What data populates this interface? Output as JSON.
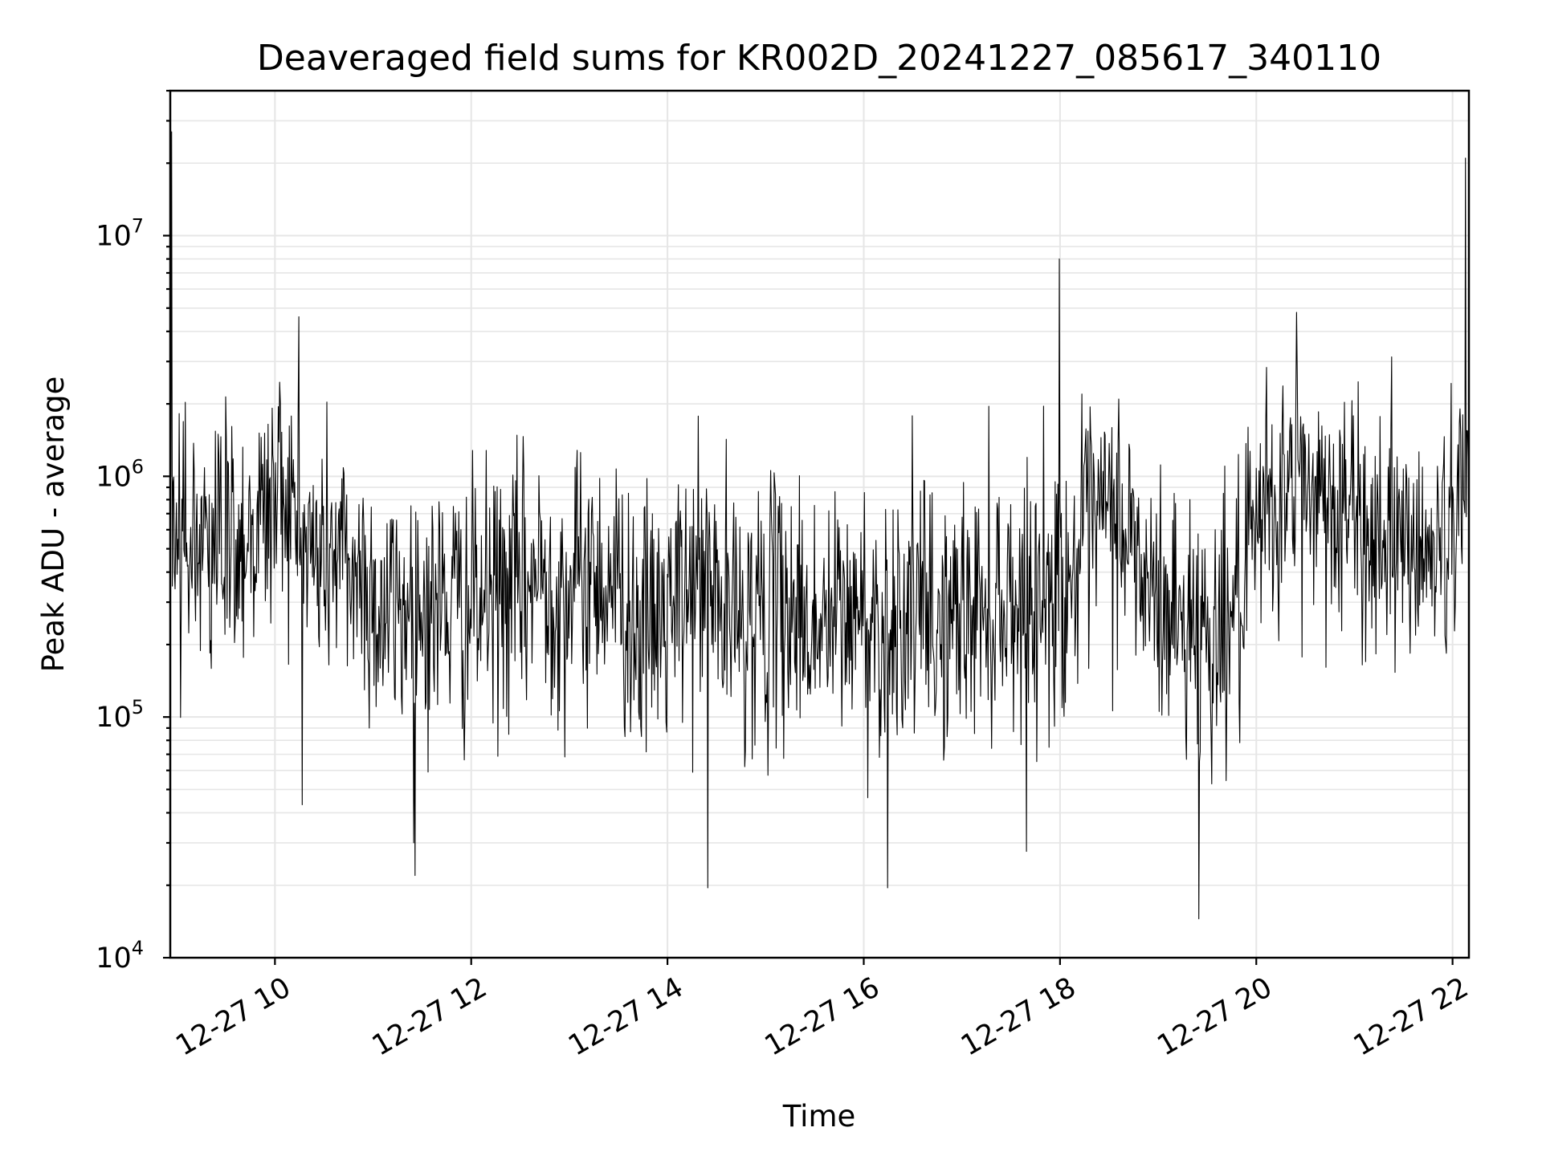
{
  "chart_data": {
    "type": "line",
    "title": "Deaveraged field sums for KR002D_20241227_085617_340110",
    "xlabel": "Time",
    "ylabel": "Peak ADU - average",
    "yscale": "log",
    "ylim": [
      10000,
      40000000
    ],
    "xlim": [
      "2024-12-27 08:56",
      "2024-12-27 22:10"
    ],
    "grid": true,
    "color": "#000000",
    "x_ticks": [
      {
        "value": "2024-12-27 10:00",
        "label": "12-27 10"
      },
      {
        "value": "2024-12-27 12:00",
        "label": "12-27 12"
      },
      {
        "value": "2024-12-27 14:00",
        "label": "12-27 14"
      },
      {
        "value": "2024-12-27 16:00",
        "label": "12-27 16"
      },
      {
        "value": "2024-12-27 18:00",
        "label": "12-27 18"
      },
      {
        "value": "2024-12-27 20:00",
        "label": "12-27 20"
      },
      {
        "value": "2024-12-27 22:00",
        "label": "12-27 22"
      }
    ],
    "y_ticks": [
      {
        "value": 10000,
        "base": "10",
        "exp": "4"
      },
      {
        "value": 100000,
        "base": "10",
        "exp": "5"
      },
      {
        "value": 1000000,
        "base": "10",
        "exp": "6"
      },
      {
        "value": 10000000,
        "base": "10",
        "exp": "7"
      }
    ],
    "series": [
      {
        "x": [
          "2024-12-27 08:56",
          "2024-12-27 09:05",
          "2024-12-27 09:15",
          "2024-12-27 09:25",
          "2024-12-27 09:35",
          "2024-12-27 09:45",
          "2024-12-27 09:55",
          "2024-12-27 10:05",
          "2024-12-27 10:15",
          "2024-12-27 10:25",
          "2024-12-27 10:35",
          "2024-12-27 10:45",
          "2024-12-27 10:55",
          "2024-12-27 11:05",
          "2024-12-27 11:15",
          "2024-12-27 11:25",
          "2024-12-27 11:35",
          "2024-12-27 11:45",
          "2024-12-27 11:55",
          "2024-12-27 12:05",
          "2024-12-27 12:15",
          "2024-12-27 12:25",
          "2024-12-27 12:35",
          "2024-12-27 12:45",
          "2024-12-27 12:55",
          "2024-12-27 13:05",
          "2024-12-27 13:15",
          "2024-12-27 13:25",
          "2024-12-27 13:35",
          "2024-12-27 13:45",
          "2024-12-27 13:55",
          "2024-12-27 14:05",
          "2024-12-27 14:15",
          "2024-12-27 14:25",
          "2024-12-27 14:35",
          "2024-12-27 14:45",
          "2024-12-27 14:55",
          "2024-12-27 15:05",
          "2024-12-27 15:15",
          "2024-12-27 15:25",
          "2024-12-27 15:35",
          "2024-12-27 15:45",
          "2024-12-27 15:55",
          "2024-12-27 16:05",
          "2024-12-27 16:15",
          "2024-12-27 16:25",
          "2024-12-27 16:35",
          "2024-12-27 16:45",
          "2024-12-27 16:55",
          "2024-12-27 17:05",
          "2024-12-27 17:15",
          "2024-12-27 17:25",
          "2024-12-27 17:35",
          "2024-12-27 17:45",
          "2024-12-27 17:55",
          "2024-12-27 18:05",
          "2024-12-27 18:15",
          "2024-12-27 18:25",
          "2024-12-27 18:35",
          "2024-12-27 18:45",
          "2024-12-27 18:55",
          "2024-12-27 19:05",
          "2024-12-27 19:15",
          "2024-12-27 19:25",
          "2024-12-27 19:35",
          "2024-12-27 19:45",
          "2024-12-27 19:55",
          "2024-12-27 20:05",
          "2024-12-27 20:15",
          "2024-12-27 20:25",
          "2024-12-27 20:35",
          "2024-12-27 20:45",
          "2024-12-27 20:55",
          "2024-12-27 21:05",
          "2024-12-27 21:15",
          "2024-12-27 21:25",
          "2024-12-27 21:35",
          "2024-12-27 21:45",
          "2024-12-27 21:55",
          "2024-12-27 22:05",
          "2024-12-27 22:10"
        ],
        "y": [
          600000,
          700000,
          500000,
          650000,
          550000,
          600000,
          700000,
          1000000,
          550000,
          450000,
          500000,
          420000,
          380000,
          260000,
          280000,
          300000,
          270000,
          300000,
          280000,
          290000,
          320000,
          330000,
          350000,
          400000,
          320000,
          350000,
          400000,
          380000,
          300000,
          220000,
          250000,
          280000,
          350000,
          400000,
          250000,
          260000,
          280000,
          270000,
          300000,
          250000,
          230000,
          260000,
          270000,
          250000,
          240000,
          280000,
          270000,
          230000,
          260000,
          280000,
          300000,
          320000,
          300000,
          310000,
          330000,
          380000,
          500000,
          650000,
          700000,
          500000,
          300000,
          280000,
          250000,
          240000,
          220000,
          270000,
          350000,
          700000,
          800000,
          850000,
          900000,
          800000,
          700000,
          600000,
          600000,
          550000,
          500000,
          480000,
          520000,
          1000000,
          1100000
        ],
        "peaks": [
          {
            "x": "2024-12-27 08:57",
            "y": 27000000
          },
          {
            "x": "2024-12-27 10:15",
            "y": 4600000
          },
          {
            "x": "2024-12-27 18:00",
            "y": 8000000
          },
          {
            "x": "2024-12-27 20:25",
            "y": 4800000
          },
          {
            "x": "2024-12-27 22:08",
            "y": 21000000
          }
        ],
        "troughs": [
          {
            "x": "2024-12-27 11:25",
            "y": 30000
          },
          {
            "x": "2024-12-27 14:25",
            "y": 19500
          },
          {
            "x": "2024-12-27 16:15",
            "y": 19500
          },
          {
            "x": "2024-12-27 19:25",
            "y": 14500
          }
        ]
      }
    ]
  }
}
